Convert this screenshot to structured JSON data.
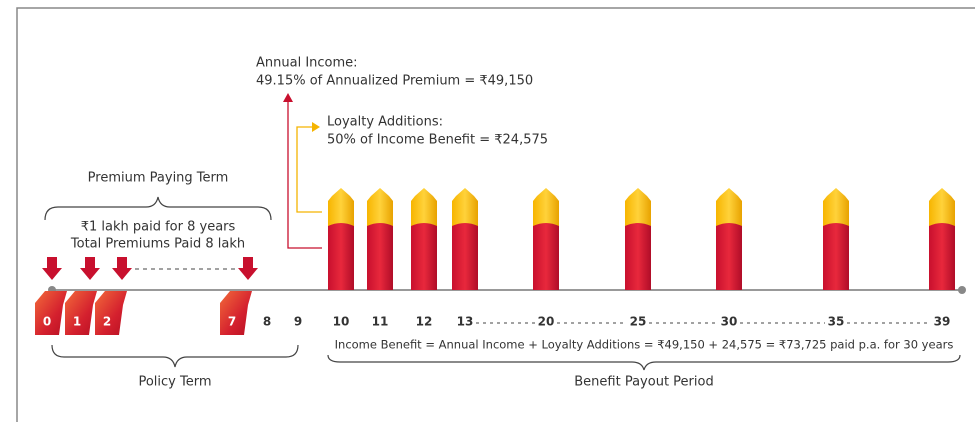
{
  "annual_income": {
    "label": "Annual Income:",
    "detail": "49.15% of Annualized Premium = ₹49,150"
  },
  "loyalty_additions": {
    "label": "Loyalty Additions:",
    "detail": "50% of Income Benefit = ₹24,575"
  },
  "premium_paying_term": {
    "title": "Premium Paying Term",
    "lines": [
      "₹1 lakh paid for 8 years",
      "Total Premiums Paid 8 lakh"
    ]
  },
  "timeline": {
    "premium_years": [
      "0",
      "1",
      "2",
      "7"
    ],
    "other_years": [
      "8",
      "9"
    ],
    "payout_years": [
      "10",
      "11",
      "12",
      "13",
      "20",
      "25",
      "30",
      "35",
      "39"
    ]
  },
  "income_benefit": "Income Benefit = Annual Income + Loyalty Additions = ₹49,150 + 24,575 = ₹73,725 paid p.a. for 30 years",
  "policy_term": "Policy Term",
  "benefit_payout_period": "Benefit Payout Period"
}
